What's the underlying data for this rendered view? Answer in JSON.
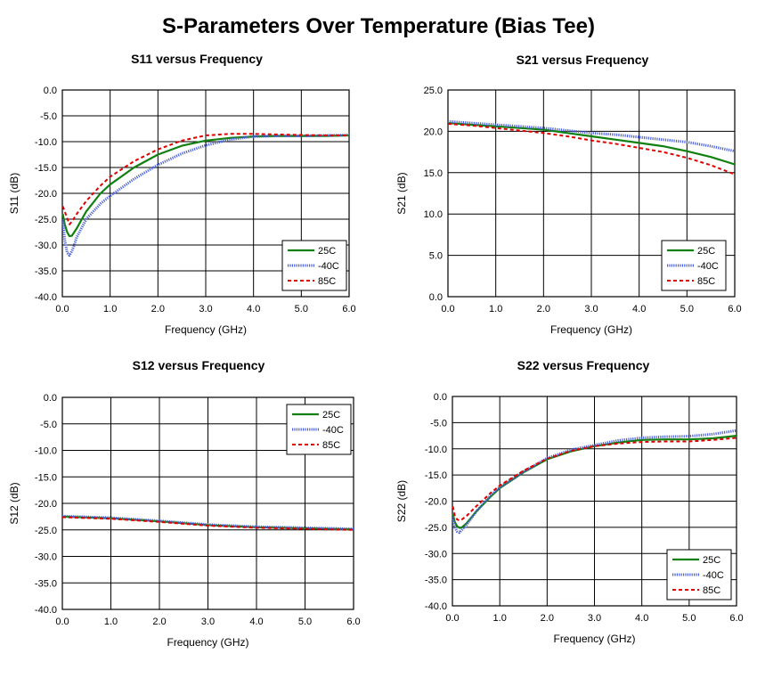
{
  "page": {
    "title": "S-Parameters Over Temperature (Bias Tee)"
  },
  "colors": {
    "s25": "#108010",
    "s40": "#4a5fd8",
    "s85": "#e00000",
    "grid": "#000000"
  },
  "chart_data": [
    {
      "type": "line",
      "title": "S11 versus Frequency",
      "xlabel": "Frequency (GHz)",
      "ylabel": "S11 (dB)",
      "xlim": [
        0,
        6
      ],
      "ylim": [
        -40,
        0
      ],
      "xticks": [
        "0.0",
        "1.0",
        "2.0",
        "3.0",
        "4.0",
        "5.0",
        "6.0"
      ],
      "yticks": [
        "0.0",
        "-5.0",
        "-10.0",
        "-15.0",
        "-20.0",
        "-25.0",
        "-30.0",
        "-35.0",
        "-40.0"
      ],
      "legend": "bottom-right",
      "series": [
        {
          "name": "25C",
          "x": [
            0.01,
            0.05,
            0.1,
            0.15,
            0.2,
            0.3,
            0.5,
            0.8,
            1.0,
            1.5,
            2.0,
            2.5,
            3.0,
            3.5,
            4.0,
            4.5,
            5.0,
            5.5,
            6.0
          ],
          "y": [
            -24,
            -26,
            -27.5,
            -28.3,
            -28.2,
            -26.8,
            -23.5,
            -20,
            -18.3,
            -15,
            -12.5,
            -10.8,
            -9.8,
            -9.3,
            -9.0,
            -8.9,
            -8.9,
            -8.9,
            -8.8
          ]
        },
        {
          "name": "-40C",
          "x": [
            0.01,
            0.05,
            0.1,
            0.15,
            0.2,
            0.25,
            0.3,
            0.5,
            0.8,
            1.0,
            1.5,
            2.0,
            2.5,
            3.0,
            3.5,
            4.0,
            4.5,
            5.0,
            5.5,
            6.0
          ],
          "y": [
            -25,
            -29,
            -31.5,
            -32,
            -31.2,
            -30,
            -28.5,
            -25,
            -22,
            -20.5,
            -17.2,
            -14.5,
            -12.3,
            -10.7,
            -9.6,
            -9.0,
            -8.9,
            -8.9,
            -8.8,
            -8.7
          ]
        },
        {
          "name": "85C",
          "x": [
            0.01,
            0.05,
            0.1,
            0.15,
            0.2,
            0.3,
            0.5,
            0.8,
            1.0,
            1.5,
            2.0,
            2.5,
            3.0,
            3.5,
            4.0,
            4.5,
            5.0,
            5.5,
            6.0
          ],
          "y": [
            -22.5,
            -23.5,
            -24.8,
            -26,
            -25.5,
            -24,
            -21.5,
            -18.5,
            -16.8,
            -13.8,
            -11.5,
            -9.8,
            -8.8,
            -8.5,
            -8.5,
            -8.6,
            -8.7,
            -8.8,
            -8.8
          ]
        }
      ]
    },
    {
      "type": "line",
      "title": "S21 versus Frequency",
      "xlabel": "Frequency (GHz)",
      "ylabel": "S21 (dB)",
      "xlim": [
        0,
        6
      ],
      "ylim": [
        0,
        25
      ],
      "xticks": [
        "0.0",
        "1.0",
        "2.0",
        "3.0",
        "4.0",
        "5.0",
        "6.0"
      ],
      "yticks": [
        "25.0",
        "20.0",
        "15.0",
        "10.0",
        "5.0",
        "0.0"
      ],
      "legend": "bottom-right",
      "series": [
        {
          "name": "25C",
          "x": [
            0,
            0.5,
            1,
            1.5,
            2,
            2.5,
            3,
            3.5,
            4,
            4.5,
            5,
            5.5,
            6
          ],
          "y": [
            21,
            20.8,
            20.6,
            20.4,
            20.2,
            19.8,
            19.4,
            19.0,
            18.6,
            18.2,
            17.6,
            16.9,
            16.0
          ]
        },
        {
          "name": "-40C",
          "x": [
            0,
            0.5,
            1,
            1.5,
            2,
            2.5,
            3,
            3.5,
            4,
            4.5,
            5,
            5.5,
            6
          ],
          "y": [
            21.2,
            21.0,
            20.8,
            20.6,
            20.4,
            20.1,
            19.8,
            19.6,
            19.3,
            19.0,
            18.7,
            18.2,
            17.6
          ]
        },
        {
          "name": "85C",
          "x": [
            0,
            0.5,
            1,
            1.5,
            2,
            2.5,
            3,
            3.5,
            4,
            4.5,
            5,
            5.5,
            6
          ],
          "y": [
            20.9,
            20.7,
            20.4,
            20.1,
            19.8,
            19.4,
            18.9,
            18.5,
            18.0,
            17.5,
            16.8,
            15.9,
            14.8
          ]
        }
      ]
    },
    {
      "type": "line",
      "title": "S12 versus Frequency",
      "xlabel": "Frequency (GHz)",
      "ylabel": "S12 (dB)",
      "xlim": [
        0,
        6
      ],
      "ylim": [
        -40,
        0
      ],
      "xticks": [
        "0.0",
        "1.0",
        "2.0",
        "3.0",
        "4.0",
        "5.0",
        "6.0"
      ],
      "yticks": [
        "0.0",
        "-5.0",
        "-10.0",
        "-15.0",
        "-20.0",
        "-25.0",
        "-30.0",
        "-35.0",
        "-40.0"
      ],
      "legend": "top-right",
      "series": [
        {
          "name": "25C",
          "x": [
            0,
            1,
            2,
            3,
            4,
            5,
            6
          ],
          "y": [
            -22.5,
            -22.8,
            -23.4,
            -24.1,
            -24.5,
            -24.7,
            -24.9
          ]
        },
        {
          "name": "-40C",
          "x": [
            0,
            1,
            2,
            3,
            4,
            5,
            6
          ],
          "y": [
            -22.4,
            -22.7,
            -23.3,
            -24.0,
            -24.4,
            -24.6,
            -24.8
          ]
        },
        {
          "name": "85C",
          "x": [
            0,
            1,
            2,
            3,
            4,
            5,
            6
          ],
          "y": [
            -22.6,
            -22.9,
            -23.5,
            -24.2,
            -24.6,
            -24.8,
            -25.0
          ]
        }
      ]
    },
    {
      "type": "line",
      "title": "S22 versus Frequency",
      "xlabel": "Frequency (GHz)",
      "ylabel": "S22 (dB)",
      "xlim": [
        0,
        6
      ],
      "ylim": [
        -40,
        0
      ],
      "xticks": [
        "0.0",
        "1.0",
        "2.0",
        "3.0",
        "4.0",
        "5.0",
        "6.0"
      ],
      "yticks": [
        "0.0",
        "-5.0",
        "-10.0",
        "-15.0",
        "-20.0",
        "-25.0",
        "-30.0",
        "-35.0",
        "-40.0"
      ],
      "legend": "bottom-right",
      "series": [
        {
          "name": "25C",
          "x": [
            0.01,
            0.05,
            0.1,
            0.15,
            0.2,
            0.3,
            0.5,
            0.8,
            1.0,
            1.5,
            2.0,
            2.5,
            3.0,
            3.5,
            4.0,
            4.5,
            5.0,
            5.5,
            6.0
          ],
          "y": [
            -22.5,
            -24,
            -24.8,
            -25.1,
            -25,
            -24.2,
            -22,
            -19.2,
            -17.5,
            -14.5,
            -12,
            -10.5,
            -9.5,
            -8.8,
            -8.3,
            -8.2,
            -8.2,
            -8.0,
            -7.5
          ]
        },
        {
          "name": "-40C",
          "x": [
            0.01,
            0.05,
            0.1,
            0.15,
            0.2,
            0.3,
            0.5,
            0.8,
            1.0,
            1.5,
            2.0,
            2.5,
            3.0,
            3.5,
            4.0,
            4.5,
            5.0,
            5.5,
            6.0
          ],
          "y": [
            -23,
            -25,
            -25.8,
            -26,
            -25.5,
            -24.5,
            -22,
            -19,
            -17.3,
            -14.3,
            -11.8,
            -10.2,
            -9.3,
            -8.4,
            -7.9,
            -7.7,
            -7.6,
            -7.2,
            -6.5
          ]
        },
        {
          "name": "85C",
          "x": [
            0.01,
            0.05,
            0.1,
            0.15,
            0.2,
            0.3,
            0.5,
            0.8,
            1.0,
            1.5,
            2.0,
            2.5,
            3.0,
            3.5,
            4.0,
            4.5,
            5.0,
            5.5,
            6.0
          ],
          "y": [
            -21,
            -22.8,
            -23.5,
            -23.7,
            -23.5,
            -22.8,
            -21,
            -18.5,
            -17,
            -14.2,
            -11.9,
            -10.4,
            -9.5,
            -9.0,
            -8.7,
            -8.6,
            -8.6,
            -8.3,
            -7.9
          ]
        }
      ]
    }
  ]
}
